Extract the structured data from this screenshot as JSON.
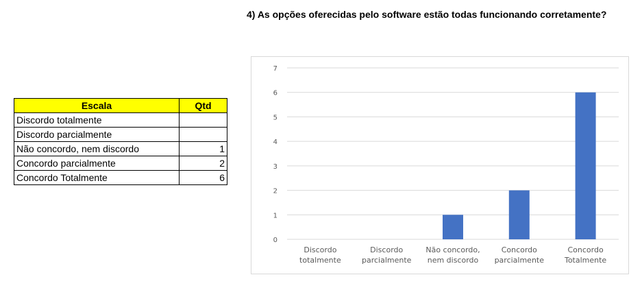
{
  "question": "4) As opções oferecidas pelo software estão todas funcionando corretamente?",
  "table": {
    "headers": [
      "Escala",
      "Qtd"
    ],
    "rows": [
      {
        "label": "Discordo totalmente",
        "qty": ""
      },
      {
        "label": "Discordo parcialmente",
        "qty": ""
      },
      {
        "label": "Não concordo, nem discordo",
        "qty": "1"
      },
      {
        "label": "Concordo parcialmente",
        "qty": "2"
      },
      {
        "label": "Concordo Totalmente",
        "qty": "6"
      }
    ]
  },
  "chart_data": {
    "type": "bar",
    "categories": [
      [
        "Discordo",
        "totalmente"
      ],
      [
        "Discordo",
        "parcialmente"
      ],
      [
        "Não concordo,",
        "nem discordo"
      ],
      [
        "Concordo",
        "parcialmente"
      ],
      [
        "Concordo",
        "Totalmente"
      ]
    ],
    "values": [
      0,
      0,
      1,
      2,
      6
    ],
    "ylim": [
      0,
      7
    ],
    "yticks": [
      0,
      1,
      2,
      3,
      4,
      5,
      6,
      7
    ],
    "grid": true,
    "legend": "none",
    "bar_color": "#4472c4",
    "grid_color": "#d9d9d9",
    "header_color": "#ffff00"
  }
}
